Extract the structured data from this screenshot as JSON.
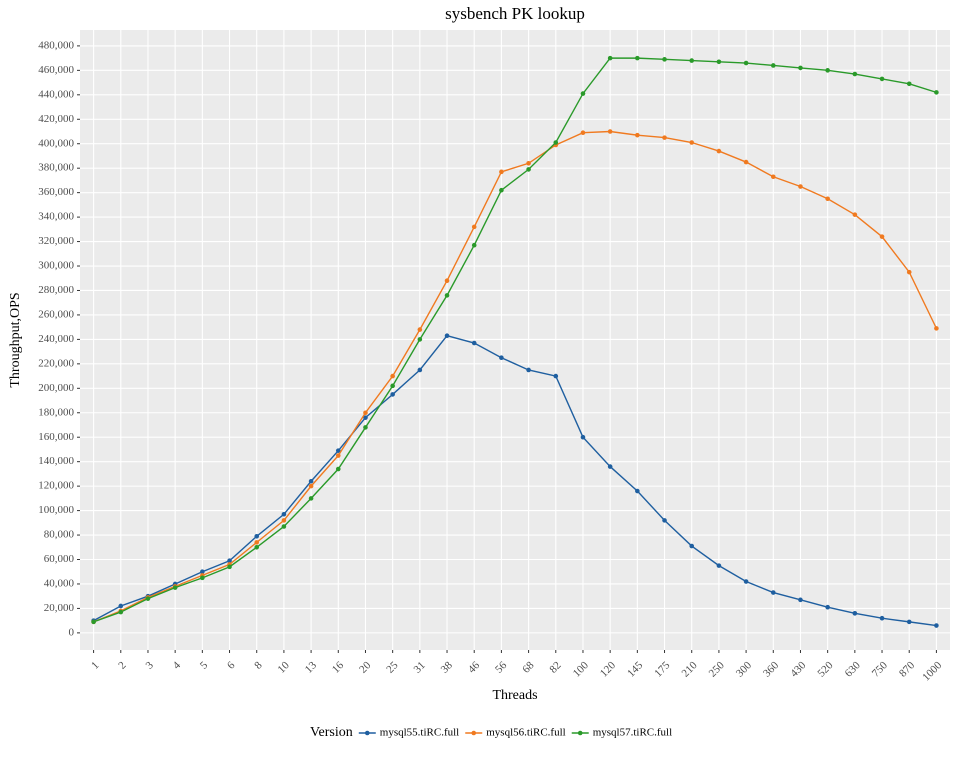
{
  "chart_data": {
    "type": "line",
    "title": "sysbench PK lookup",
    "x_label": "Threads",
    "y_label": "Throughput,OPS",
    "categories": [
      "1",
      "2",
      "3",
      "4",
      "5",
      "6",
      "8",
      "10",
      "13",
      "16",
      "20",
      "25",
      "31",
      "38",
      "46",
      "56",
      "68",
      "82",
      "100",
      "120",
      "145",
      "175",
      "210",
      "250",
      "300",
      "360",
      "430",
      "520",
      "630",
      "750",
      "870",
      "1000"
    ],
    "series": [
      {
        "name": "mysql55.tiRC.full",
        "color": "#1f5fa0",
        "values": [
          10000,
          22000,
          30000,
          40000,
          50000,
          59000,
          79000,
          97000,
          124000,
          149000,
          176000,
          195000,
          215000,
          243000,
          237000,
          225000,
          215000,
          210000,
          160000,
          136000,
          116000,
          92000,
          71000,
          55000,
          42000,
          33000,
          27000,
          21000,
          16000,
          12000,
          9000,
          6000
        ]
      },
      {
        "name": "mysql56.tiRC.full",
        "color": "#f07a20",
        "values": [
          9000,
          18000,
          29000,
          38000,
          47000,
          56000,
          74000,
          92000,
          120000,
          145000,
          180000,
          210000,
          248000,
          288000,
          332000,
          377000,
          384000,
          399000,
          409000,
          410000,
          407000,
          405000,
          401000,
          394000,
          385000,
          373000,
          365000,
          355000,
          342000,
          324000,
          295000,
          249000
        ]
      },
      {
        "name": "mysql57.tiRC.full",
        "color": "#2a9a2a",
        "values": [
          9000,
          17000,
          28000,
          37000,
          45000,
          54000,
          70000,
          87000,
          110000,
          134000,
          168000,
          202000,
          240000,
          276000,
          317000,
          362000,
          379000,
          401000,
          441000,
          470000,
          470000,
          469000,
          468000,
          467000,
          466000,
          464000,
          462000,
          460000,
          457000,
          453000,
          449000,
          442000
        ]
      }
    ],
    "ylim": [
      -14000,
      493000
    ],
    "yticks": [
      0,
      {
        "value": 20000,
        "label": "20,000"
      },
      {
        "value": 40000,
        "label": "40,000"
      },
      {
        "value": 60000,
        "label": "60,000"
      },
      {
        "value": 80000,
        "label": "80,000"
      },
      {
        "value": 100000,
        "label": "100,000"
      },
      {
        "value": 120000,
        "label": "120,000"
      },
      {
        "value": 140000,
        "label": "140,000"
      },
      {
        "value": 160000,
        "label": "160,000"
      },
      {
        "value": 180000,
        "label": "180,000"
      },
      {
        "value": 200000,
        "label": "200,000"
      },
      {
        "value": 220000,
        "label": "220,000"
      },
      {
        "value": 240000,
        "label": "240,000"
      },
      {
        "value": 260000,
        "label": "260,000"
      },
      {
        "value": 280000,
        "label": "280,000"
      },
      {
        "value": 300000,
        "label": "300,000"
      },
      {
        "value": 320000,
        "label": "320,000"
      },
      {
        "value": 340000,
        "label": "340,000"
      },
      {
        "value": 360000,
        "label": "360,000"
      },
      {
        "value": 380000,
        "label": "380,000"
      },
      {
        "value": 400000,
        "label": "400,000"
      },
      {
        "value": 420000,
        "label": "420,000"
      },
      {
        "value": 440000,
        "label": "440,000"
      },
      {
        "value": 460000,
        "label": "460,000"
      },
      {
        "value": 480000,
        "label": "480,000"
      }
    ],
    "legend_title": "Version",
    "legend": "bottom",
    "grid": true
  }
}
